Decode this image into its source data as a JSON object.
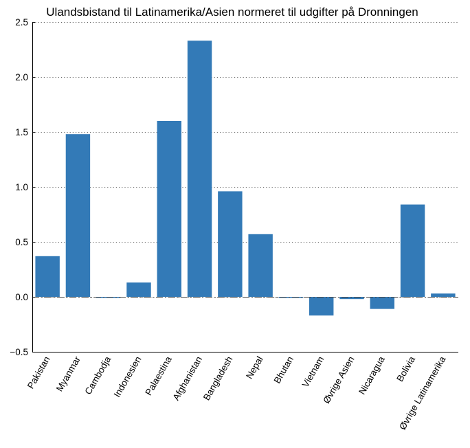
{
  "chart_data": {
    "type": "bar",
    "title": "Ulandsbistand til Latinamerika/Asien normeret til udgifter på Dronningen",
    "xlabel": "",
    "ylabel": "",
    "categories": [
      "Pakistan",
      "Myanmar",
      "Cambodja",
      "Indonesien",
      "Palaestina",
      "Afghanistan",
      "Bangladesh",
      "Nepal",
      "Bhutan",
      "Vietnam",
      "Øvrige Asien",
      "Nicaragua",
      "Bolivia",
      "Øvrige Latinamerika"
    ],
    "values": [
      0.37,
      1.48,
      -0.01,
      0.13,
      1.6,
      2.33,
      0.96,
      0.57,
      -0.01,
      -0.17,
      -0.02,
      -0.11,
      0.84,
      0.03
    ],
    "ylim": [
      -0.5,
      2.5
    ],
    "yticks": [
      "−0.5",
      "0.0",
      "0.5",
      "1.0",
      "1.5",
      "2.0",
      "2.5"
    ],
    "ytick_values": [
      -0.5,
      0.0,
      0.5,
      1.0,
      1.5,
      2.0,
      2.5
    ],
    "grid": true,
    "bar_color": "#337ab7"
  }
}
